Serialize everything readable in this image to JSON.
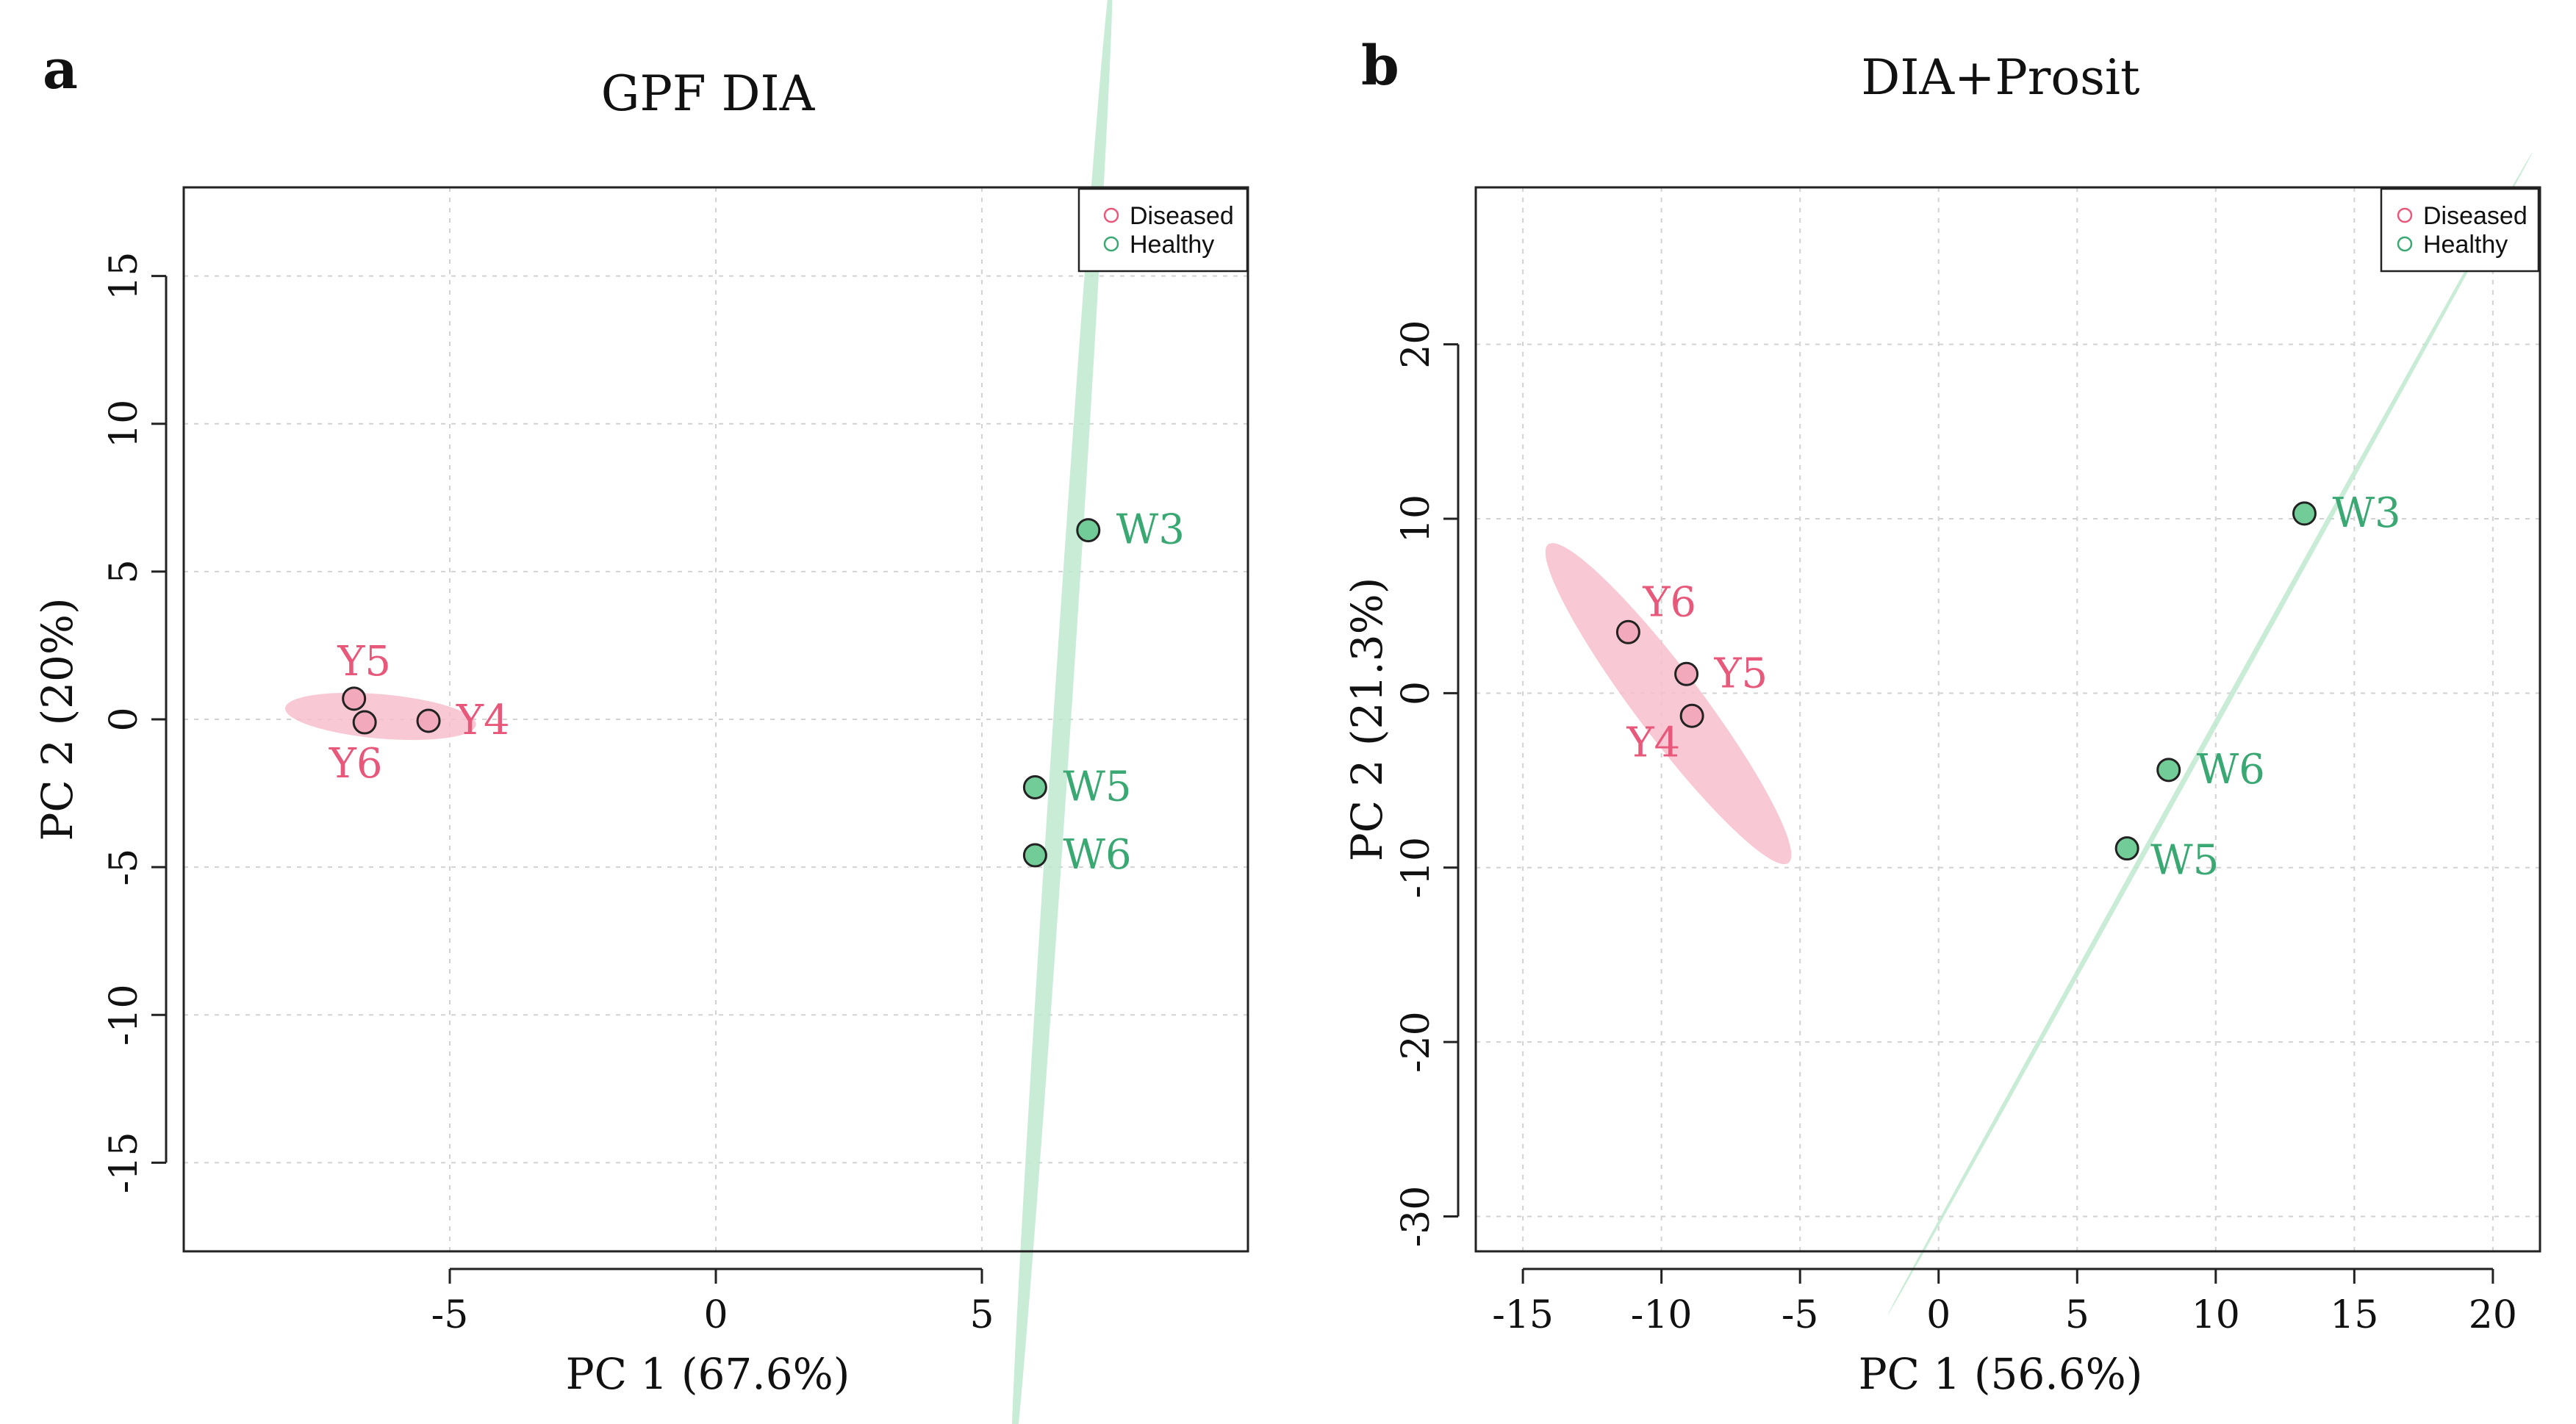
{
  "colors": {
    "diseased": "#e8587a",
    "diseased_fill": "#f2a9bb",
    "diseased_ellipse": "#f7bfcc",
    "healthy": "#3aa872",
    "healthy_fill": "#72cc98",
    "healthy_ellipse": "#bfe9cf"
  },
  "chart_data": [
    {
      "panel_letter": "a",
      "type": "scatter",
      "title": "GPF DIA",
      "xlabel": "PC 1 (67.6%)",
      "ylabel": "PC 2 (20%)",
      "xlim": [
        -10,
        10
      ],
      "ylim": [
        -18,
        18
      ],
      "xticks": [
        -5,
        0,
        5
      ],
      "yticks": [
        -15,
        -10,
        -5,
        0,
        5,
        10,
        15
      ],
      "grid": true,
      "legend": {
        "position": "top-right",
        "entries": [
          "Diseased",
          "Healthy"
        ]
      },
      "series": [
        {
          "name": "Diseased",
          "points": [
            {
              "label": "Y5",
              "x": -6.8,
              "y": 0.7,
              "label_pos": "above"
            },
            {
              "label": "Y6",
              "x": -6.6,
              "y": -0.1,
              "label_pos": "below"
            },
            {
              "label": "Y4",
              "x": -5.4,
              "y": -0.05,
              "label_pos": "right"
            }
          ]
        },
        {
          "name": "Healthy",
          "points": [
            {
              "label": "W3",
              "x": 7.0,
              "y": 6.4,
              "label_pos": "right"
            },
            {
              "label": "W5",
              "x": 6.0,
              "y": -2.3,
              "label_pos": "right"
            },
            {
              "label": "W6",
              "x": 6.0,
              "y": -4.6,
              "label_pos": "right"
            }
          ]
        }
      ],
      "ellipses": [
        {
          "group": "Diseased",
          "cx": -6.3,
          "cy": 0.1,
          "rx": 1.8,
          "ry": 0.75,
          "angle_deg": -5
        },
        {
          "group": "Healthy",
          "cx": 6.5,
          "cy": -0.2,
          "rx": 14.2,
          "ry": 0.3,
          "angle_deg": 86.2
        }
      ]
    },
    {
      "panel_letter": "b",
      "type": "scatter",
      "title": "DIA+Prosit",
      "xlabel": "PC 1 (56.6%)",
      "ylabel": "PC 2 (21.3%)",
      "xlim": [
        -16.7,
        21.7
      ],
      "ylim": [
        -32,
        29
      ],
      "xticks": [
        -15,
        -10,
        -5,
        0,
        5,
        10,
        15,
        20
      ],
      "yticks": [
        -30,
        -20,
        -10,
        0,
        10,
        20
      ],
      "grid": true,
      "legend": {
        "position": "top-right",
        "entries": [
          "Diseased",
          "Healthy"
        ]
      },
      "series": [
        {
          "name": "Diseased",
          "points": [
            {
              "label": "Y6",
              "x": -11.2,
              "y": 3.5,
              "label_pos": "above-right"
            },
            {
              "label": "Y5",
              "x": -9.1,
              "y": 1.1,
              "label_pos": "right"
            },
            {
              "label": "Y4",
              "x": -8.9,
              "y": -1.3,
              "label_pos": "below-left"
            }
          ]
        },
        {
          "name": "Healthy",
          "points": [
            {
              "label": "W3",
              "x": 13.2,
              "y": 10.3,
              "label_pos": "right"
            },
            {
              "label": "W6",
              "x": 8.3,
              "y": -4.4,
              "label_pos": "right"
            },
            {
              "label": "W5",
              "x": 6.8,
              "y": -8.9,
              "label_pos": "below-right"
            }
          ]
        }
      ],
      "ellipses": [
        {
          "group": "Diseased",
          "cx": -9.75,
          "cy": -0.6,
          "rx": 7.2,
          "ry": 1.9,
          "angle_deg": -53
        },
        {
          "group": "Healthy",
          "cx": 9.8,
          "cy": -2.3,
          "rx": 24.0,
          "ry": 0.15,
          "angle_deg": 61
        }
      ]
    }
  ]
}
